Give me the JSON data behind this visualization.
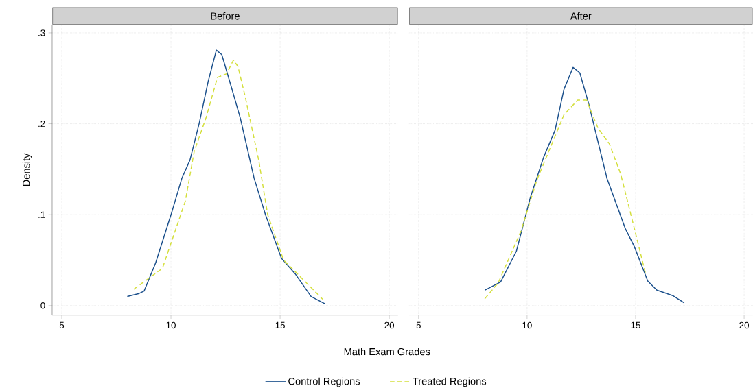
{
  "chart_data": [
    {
      "type": "line",
      "title": "Before",
      "xlabel": "Math Exam Grades",
      "ylabel": "Density",
      "xlim": [
        4.56,
        20.4
      ],
      "ylim": [
        -0.0106,
        0.309
      ],
      "xticks": [
        5,
        10,
        15,
        20
      ],
      "yticks": [
        {
          "value": 0,
          "label": "0"
        },
        {
          "value": 0.1,
          "label": ".1"
        },
        {
          "value": 0.2,
          "label": ".2"
        },
        {
          "value": 0.3,
          "label": ".3"
        }
      ],
      "grid": true,
      "legend": "bottom",
      "series": [
        {
          "name": "Control Regions",
          "color": "#1a4f8b",
          "line_style": "solid",
          "x": [
            8.0,
            8.51,
            8.77,
            9.3,
            10.03,
            10.5,
            10.87,
            11.29,
            11.7,
            12.08,
            12.33,
            12.76,
            13.18,
            13.81,
            14.33,
            15.06,
            15.69,
            16.42,
            17.05
          ],
          "values": [
            0.01,
            0.013,
            0.016,
            0.047,
            0.102,
            0.14,
            0.16,
            0.2,
            0.246,
            0.281,
            0.276,
            0.241,
            0.206,
            0.14,
            0.1,
            0.052,
            0.035,
            0.01,
            0.002
          ]
        },
        {
          "name": "Treated Regions",
          "color": "#d4df3c",
          "line_style": "dashed",
          "x": [
            8.3,
            9.61,
            10.66,
            11.07,
            11.6,
            12.13,
            12.55,
            12.86,
            13.07,
            13.39,
            14.02,
            14.43,
            15.16,
            15.79,
            16.95
          ],
          "values": [
            0.018,
            0.041,
            0.115,
            0.17,
            0.206,
            0.251,
            0.255,
            0.27,
            0.263,
            0.231,
            0.16,
            0.1,
            0.05,
            0.035,
            0.007
          ]
        }
      ]
    },
    {
      "type": "line",
      "title": "After",
      "xlim": [
        4.56,
        20.4
      ],
      "ylim": [
        -0.0106,
        0.309
      ],
      "xticks": [
        5,
        10,
        15,
        20
      ],
      "yticks": [
        {
          "value": 0,
          "label": null
        },
        {
          "value": 0.1,
          "label": null
        },
        {
          "value": 0.2,
          "label": null
        },
        {
          "value": 0.3,
          "label": null
        }
      ],
      "grid": true,
      "tick_labels": "x",
      "series": [
        {
          "color": "#1a4f8b",
          "line_style": "solid",
          "x": [
            8.05,
            8.78,
            9.51,
            10.14,
            10.76,
            11.29,
            11.7,
            12.12,
            12.43,
            12.85,
            13.27,
            13.68,
            14.52,
            14.94,
            15.56,
            15.98,
            16.71,
            17.24
          ],
          "values": [
            0.017,
            0.026,
            0.06,
            0.118,
            0.163,
            0.193,
            0.238,
            0.262,
            0.256,
            0.221,
            0.18,
            0.14,
            0.085,
            0.065,
            0.027,
            0.017,
            0.011,
            0.003
          ]
        },
        {
          "color": "#d4df3c",
          "line_style": "dashed",
          "x": [
            8.05,
            8.67,
            9.72,
            10.45,
            11.18,
            11.7,
            12.33,
            12.74,
            13.27,
            13.79,
            14.31,
            14.94,
            15.46
          ],
          "values": [
            0.0075,
            0.025,
            0.082,
            0.138,
            0.18,
            0.21,
            0.226,
            0.226,
            0.195,
            0.178,
            0.145,
            0.085,
            0.035
          ]
        }
      ]
    }
  ]
}
